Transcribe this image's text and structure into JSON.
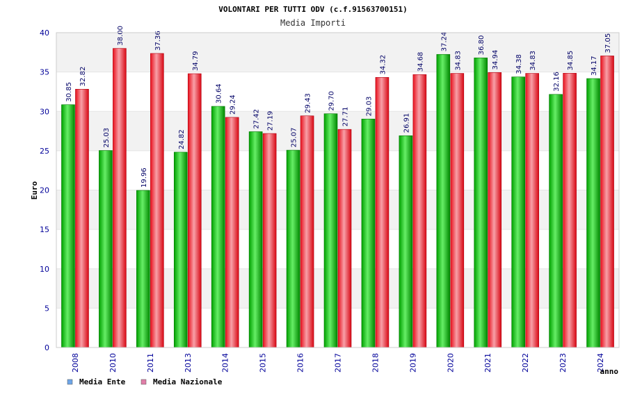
{
  "chart_data": {
    "type": "bar",
    "title": "VOLONTARI PER TUTTI ODV (c.f.91563700151)",
    "subtitle": "Media Importi",
    "xlabel": "anno",
    "ylabel": "Euro",
    "ylim": [
      0,
      40
    ],
    "yticks": [
      0,
      5,
      10,
      15,
      20,
      25,
      30,
      35,
      40
    ],
    "categories": [
      "2008",
      "2010",
      "2011",
      "2013",
      "2014",
      "2015",
      "2016",
      "2017",
      "2018",
      "2019",
      "2020",
      "2021",
      "2022",
      "2023",
      "2024"
    ],
    "series": [
      {
        "name": "Media Ente",
        "color": "#00b000",
        "values": [
          30.85,
          25.03,
          19.96,
          24.82,
          30.64,
          27.42,
          25.07,
          29.7,
          29.03,
          26.91,
          37.24,
          36.8,
          34.38,
          32.16,
          34.17
        ],
        "labels": [
          "30.85",
          "25.03",
          "19.96",
          "24.82",
          "30.64",
          "27.42",
          "25.07",
          "29.70",
          "29.03",
          "26.91",
          "37.24",
          "36.80",
          "34.38",
          "32.16",
          "34.17"
        ]
      },
      {
        "name": "Media Nazionale",
        "color": "#e0202c",
        "values": [
          32.82,
          38.0,
          37.36,
          34.79,
          29.24,
          27.19,
          29.43,
          27.71,
          34.32,
          34.68,
          34.83,
          34.94,
          34.83,
          34.85,
          37.05
        ],
        "labels": [
          "32.82",
          "38.00",
          "37.36",
          "34.79",
          "29.24",
          "27.19",
          "29.43",
          "27.71",
          "34.32",
          "34.68",
          "34.83",
          "34.94",
          "34.83",
          "34.85",
          "37.05"
        ]
      }
    ],
    "legend": {
      "placement": "bottom-left",
      "items": [
        {
          "label": "Media Ente",
          "color": "#6ea6e8"
        },
        {
          "label": "Media Nazionale",
          "color": "#e07fa8"
        }
      ]
    },
    "grid": true,
    "band_colors": [
      "#ffffff",
      "#f2f2f2"
    ]
  }
}
